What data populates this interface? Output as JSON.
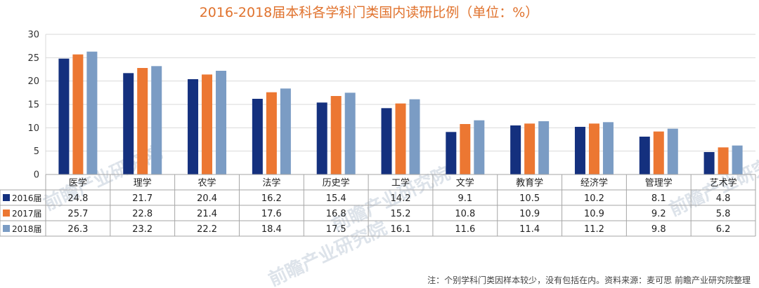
{
  "colors": {
    "title": "#E0722D",
    "series": [
      "#14307E",
      "#EC7732",
      "#7B9CC4"
    ],
    "grid": "#D9D9D9",
    "table_border": "#A6A6A6",
    "watermark": "#DDE3EA"
  },
  "watermark_text": "前瞻产业研究院",
  "footnote": "注：个别学科门类因样本较少，没有包括在内。资料来源：麦可思 前瞻产业研究院整理",
  "chart_data": {
    "type": "bar",
    "title": "2016-2018届本科各学科门类国内读研比例（单位：%）",
    "xlabel": "",
    "ylabel": "",
    "ylim": [
      0,
      30
    ],
    "yticks": [
      0,
      5,
      10,
      15,
      20,
      25,
      30
    ],
    "grid": true,
    "legend": "data-table",
    "categories": [
      "医学",
      "理学",
      "农学",
      "法学",
      "历史学",
      "工学",
      "文学",
      "教育学",
      "经济学",
      "管理学",
      "艺术学"
    ],
    "series": [
      {
        "name": "2016届",
        "values": [
          24.8,
          21.7,
          20.4,
          16.2,
          15.4,
          14.2,
          9.1,
          10.5,
          10.2,
          8.1,
          4.8
        ]
      },
      {
        "name": "2017届",
        "values": [
          25.7,
          22.8,
          21.4,
          17.6,
          16.8,
          15.2,
          10.8,
          10.9,
          10.9,
          9.2,
          5.8
        ]
      },
      {
        "name": "2018届",
        "values": [
          26.3,
          23.2,
          22.2,
          18.4,
          17.5,
          16.1,
          11.6,
          11.4,
          11.2,
          9.8,
          6.2
        ]
      }
    ]
  }
}
